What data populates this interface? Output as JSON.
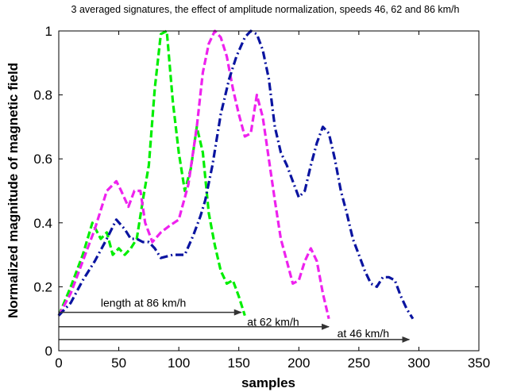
{
  "chart_data": {
    "type": "line",
    "title": "3 averaged signatures, the effect of amplitude normalization, speeds 46, 62 and 86 km/h",
    "xlabel": "samples",
    "ylabel": "Normalized magnitude of magnetic field",
    "xlim": [
      0,
      350
    ],
    "ylim": [
      0,
      1
    ],
    "xticks": [
      "0",
      "50",
      "100",
      "150",
      "200",
      "250",
      "300",
      "350"
    ],
    "yticks": [
      "0",
      "0.2",
      "0.4",
      "0.6",
      "0.8",
      "1"
    ],
    "grid": false,
    "series": [
      {
        "color": "#00ee00",
        "dash": "dashed",
        "x": [
          0,
          10,
          20,
          28,
          35,
          40,
          45,
          50,
          55,
          60,
          65,
          70,
          75,
          80,
          85,
          90,
          95,
          100,
          105,
          110,
          115,
          120,
          125,
          130,
          135,
          140,
          145,
          150,
          155
        ],
        "y": [
          0.11,
          0.2,
          0.3,
          0.4,
          0.35,
          0.37,
          0.3,
          0.32,
          0.3,
          0.32,
          0.35,
          0.47,
          0.58,
          0.82,
          0.99,
          1.0,
          0.78,
          0.62,
          0.5,
          0.57,
          0.7,
          0.62,
          0.43,
          0.33,
          0.25,
          0.21,
          0.22,
          0.17,
          0.11
        ]
      },
      {
        "color": "#ee22ee",
        "dash": "dashed",
        "x": [
          0,
          10,
          20,
          30,
          40,
          48,
          52,
          58,
          63,
          68,
          72,
          78,
          85,
          92,
          100,
          108,
          115,
          120,
          125,
          130,
          135,
          140,
          145,
          150,
          155,
          160,
          165,
          170,
          175,
          180,
          185,
          190,
          195,
          200,
          205,
          210,
          215,
          220,
          225
        ],
        "y": [
          0.11,
          0.18,
          0.28,
          0.38,
          0.5,
          0.53,
          0.5,
          0.45,
          0.5,
          0.5,
          0.4,
          0.34,
          0.37,
          0.39,
          0.41,
          0.52,
          0.7,
          0.87,
          0.96,
          1.0,
          0.98,
          0.92,
          0.82,
          0.74,
          0.67,
          0.68,
          0.8,
          0.73,
          0.6,
          0.47,
          0.35,
          0.28,
          0.21,
          0.22,
          0.28,
          0.32,
          0.28,
          0.18,
          0.1
        ]
      },
      {
        "color": "#0a14a0",
        "dash": "dashdot",
        "x": [
          0,
          10,
          20,
          30,
          40,
          48,
          55,
          60,
          65,
          70,
          75,
          80,
          85,
          95,
          105,
          112,
          118,
          122,
          128,
          135,
          142,
          148,
          155,
          160,
          165,
          170,
          175,
          180,
          185,
          190,
          195,
          200,
          205,
          210,
          215,
          220,
          225,
          230,
          235,
          240,
          245,
          250,
          255,
          260,
          265,
          270,
          275,
          280,
          285,
          290,
          295
        ],
        "y": [
          0.11,
          0.15,
          0.22,
          0.28,
          0.35,
          0.41,
          0.38,
          0.35,
          0.35,
          0.34,
          0.34,
          0.32,
          0.29,
          0.3,
          0.3,
          0.36,
          0.42,
          0.47,
          0.58,
          0.74,
          0.85,
          0.92,
          0.98,
          1.0,
          0.99,
          0.94,
          0.85,
          0.7,
          0.62,
          0.58,
          0.53,
          0.48,
          0.5,
          0.58,
          0.65,
          0.7,
          0.68,
          0.6,
          0.5,
          0.43,
          0.35,
          0.3,
          0.25,
          0.21,
          0.2,
          0.23,
          0.23,
          0.22,
          0.17,
          0.13,
          0.1
        ]
      }
    ],
    "annotations": [
      {
        "text": "length at 86 km/h",
        "label_x": 35,
        "label_y": 0.15,
        "arrow_x": [
          0,
          152
        ],
        "arrow_y": 0.12
      },
      {
        "text": "at 62 km/h",
        "label_x": 157,
        "label_y": 0.09,
        "arrow_x": [
          0,
          225
        ],
        "arrow_y": 0.075
      },
      {
        "text": "at 46 km/h",
        "label_x": 232,
        "label_y": 0.055,
        "arrow_x": [
          0,
          292
        ],
        "arrow_y": 0.035
      }
    ]
  }
}
